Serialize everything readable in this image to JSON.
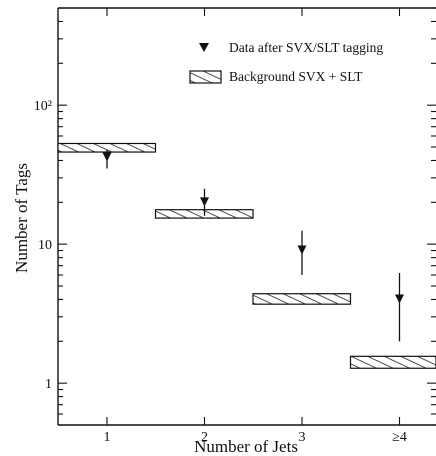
{
  "chart_data": {
    "type": "scatter",
    "xlabel": "Number of Jets",
    "ylabel": "Number of Tags",
    "categories": [
      "1",
      "2",
      "3",
      "≥4"
    ],
    "y_scale": "log",
    "ylim": [
      0.5,
      500
    ],
    "y_ticks": [
      {
        "value": 1,
        "label": "1"
      },
      {
        "value": 10,
        "label": "10"
      },
      {
        "value": 100,
        "label": "10²"
      }
    ],
    "legend_position": "top-right",
    "grid": false,
    "series": [
      {
        "name": "Data after SVX/SLT tagging",
        "style": "downward-triangle with error bars",
        "values": [
          42,
          20,
          9,
          4
        ],
        "err_low": [
          35,
          16,
          6,
          2
        ],
        "err_high": [
          48,
          25,
          12.5,
          6.2
        ]
      },
      {
        "name": "Background SVX + SLT",
        "style": "hatched band",
        "values": [
          49.5,
          16.5,
          4.0,
          1.42
        ],
        "band_low": [
          46,
          15.4,
          3.7,
          1.28
        ],
        "band_high": [
          53,
          17.7,
          4.4,
          1.56
        ]
      }
    ]
  }
}
